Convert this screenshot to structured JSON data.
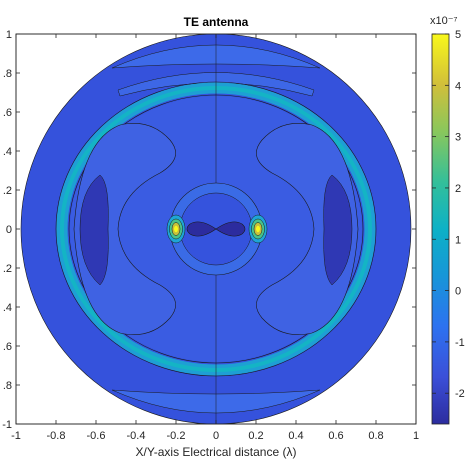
{
  "chart_data": {
    "type": "heatmap",
    "title": "TE antenna",
    "xlabel": "X/Y-axis Electrical distance (λ)",
    "ylabel": "",
    "xlim": [
      -1,
      1
    ],
    "ylim": [
      -1,
      1
    ],
    "x_ticks": [
      -1,
      -0.8,
      -0.6,
      -0.4,
      -0.2,
      0,
      0.2,
      0.4,
      0.6,
      0.8,
      1
    ],
    "x_tick_labels": [
      "-1",
      "-0.8",
      "-0.6",
      "-0.4",
      "-0.2",
      "0",
      "0.2",
      "0.4",
      "0.6",
      "0.8",
      "1"
    ],
    "y_ticks": [
      1,
      0.8,
      0.6,
      0.4,
      0.2,
      0,
      -0.2,
      -0.4,
      -0.6,
      -0.8,
      -1
    ],
    "y_tick_labels": [
      "1",
      ".8",
      ".6",
      ".4",
      ".2",
      "0",
      ".2",
      ".4",
      ".6",
      ".8",
      "-1"
    ],
    "colorbar": {
      "colormap": "parula",
      "clim": [
        -2.6,
        5
      ],
      "ticks": [
        5,
        4,
        3,
        2,
        1,
        0,
        -1,
        -2
      ],
      "tick_labels": [
        "5",
        "4",
        "3",
        "2",
        "1",
        "0",
        "-1",
        "-2"
      ],
      "exponent_label": "x10⁻⁷"
    },
    "field_value_levels": [
      -2.6,
      -2.1,
      -1.4,
      -0.7,
      0.0,
      1.5,
      3.0,
      4.5
    ],
    "regions": [
      {
        "name": "outer disk",
        "value": -1.4
      },
      {
        "name": "upper/lower caps",
        "value": -1.2
      },
      {
        "name": "ring band",
        "value": -0.3
      },
      {
        "name": "ring core",
        "value": 0.2
      },
      {
        "name": "side lobes",
        "value": -2.5
      },
      {
        "name": "inner circle",
        "value": -0.8
      },
      {
        "name": "center dipole",
        "value": -2.6
      },
      {
        "name": "feed peaks at x = ±0.2",
        "value": 4.6
      }
    ],
    "grid": false,
    "legend": "none"
  }
}
